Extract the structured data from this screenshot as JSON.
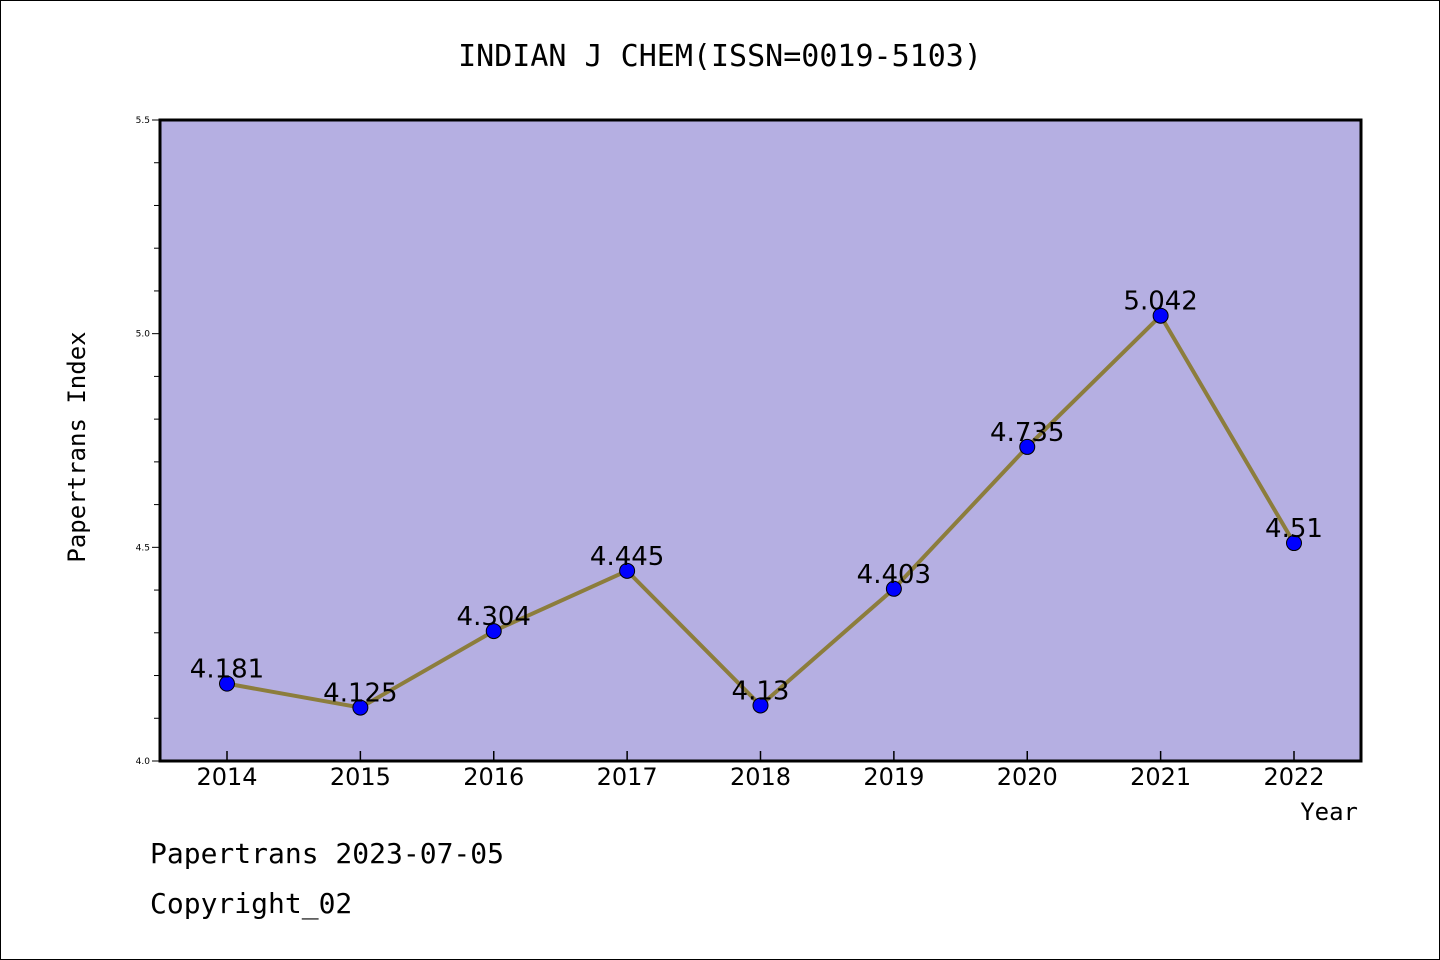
{
  "chart_data": {
    "type": "line",
    "title": "INDIAN J CHEM(ISSN=0019-5103)",
    "xlabel": "Year",
    "ylabel": "Papertrans Index",
    "categories": [
      "2014",
      "2015",
      "2016",
      "2017",
      "2018",
      "2019",
      "2020",
      "2021",
      "2022"
    ],
    "values": [
      4.181,
      4.125,
      4.304,
      4.445,
      4.13,
      4.403,
      4.735,
      5.042,
      4.51
    ],
    "data_labels": [
      "4.181",
      "4.125",
      "4.304",
      "4.445",
      "4.13",
      "4.403",
      "4.735",
      "5.042",
      "4.51"
    ],
    "ylim": [
      4.0,
      5.5
    ],
    "yticks": [
      "4.0",
      "4.5",
      "5.0",
      "5.5"
    ],
    "grid": false,
    "colors": {
      "plot_background": "#b5afe2",
      "line": "#8c7d3c",
      "marker": "#0000ff"
    }
  },
  "footer": {
    "line1": "Papertrans 2023-07-05",
    "line2": "Copyright_02"
  }
}
